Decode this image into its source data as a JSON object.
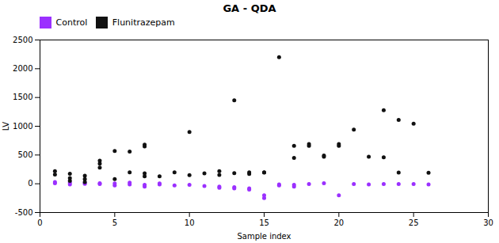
{
  "chart_data": {
    "type": "scatter",
    "title": "GA - QDA",
    "xlabel": "Sample index",
    "ylabel": "LV",
    "xlim": [
      0,
      30
    ],
    "ylim": [
      -500,
      2500
    ],
    "xticks": [
      0,
      5,
      10,
      15,
      20,
      25,
      30
    ],
    "yticks": [
      -500,
      0,
      500,
      1000,
      1500,
      2000,
      2500
    ],
    "legend": "upper left",
    "series": [
      {
        "name": "Control",
        "color": "#9B30FF",
        "x": [
          1,
          1,
          2,
          2,
          3,
          3,
          4,
          4,
          5,
          5,
          6,
          6,
          7,
          7,
          8,
          8,
          9,
          10,
          11,
          12,
          12,
          13,
          13,
          14,
          14,
          15,
          15,
          16,
          16,
          17,
          17,
          18,
          19,
          20,
          21,
          22,
          23,
          24,
          25,
          26
        ],
        "values": [
          10,
          30,
          -10,
          20,
          0,
          15,
          -5,
          10,
          -30,
          5,
          -10,
          20,
          -50,
          -20,
          5,
          -10,
          -30,
          -20,
          -40,
          -50,
          -70,
          -60,
          -80,
          -80,
          -100,
          -250,
          -200,
          -10,
          -30,
          -50,
          -20,
          -5,
          10,
          -200,
          -5,
          -10,
          -5,
          -5,
          -5,
          -10
        ]
      },
      {
        "name": "Flunitrazepam",
        "color": "#111111",
        "x": [
          1,
          1,
          2,
          2,
          2,
          3,
          3,
          3,
          4,
          4,
          4,
          5,
          5,
          6,
          6,
          7,
          7,
          7,
          7,
          8,
          9,
          10,
          10,
          11,
          12,
          12,
          13,
          13,
          14,
          14,
          15,
          15,
          16,
          17,
          17,
          18,
          18,
          19,
          19,
          20,
          20,
          21,
          22,
          23,
          23,
          24,
          24,
          25,
          26
        ],
        "values": [
          160,
          220,
          50,
          100,
          175,
          30,
          80,
          140,
          280,
          350,
          400,
          80,
          570,
          560,
          200,
          130,
          650,
          680,
          180,
          130,
          200,
          150,
          900,
          180,
          155,
          220,
          1450,
          185,
          200,
          170,
          200,
          195,
          2200,
          450,
          660,
          660,
          690,
          470,
          490,
          660,
          690,
          940,
          470,
          460,
          1280,
          195,
          1110,
          1045,
          190
        ]
      }
    ]
  }
}
